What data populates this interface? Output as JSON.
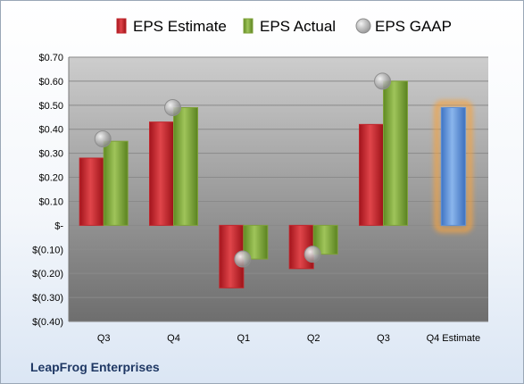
{
  "chart_data": {
    "type": "bar",
    "categories": [
      "Q3",
      "Q4",
      "Q1",
      "Q2",
      "Q3",
      "Q4 Estimate"
    ],
    "series": [
      {
        "name": "EPS Estimate",
        "values": [
          0.28,
          0.43,
          -0.26,
          -0.18,
          0.42,
          null
        ]
      },
      {
        "name": "EPS Actual",
        "values": [
          0.35,
          0.49,
          -0.14,
          -0.12,
          0.6,
          null
        ]
      },
      {
        "name": "EPS GAAP",
        "values": [
          0.36,
          0.49,
          -0.14,
          -0.12,
          0.6,
          null
        ]
      }
    ],
    "forecast": {
      "category": "Q4 Estimate",
      "value": 0.49
    },
    "ylim": [
      -0.4,
      0.7
    ],
    "yticks": [
      -0.4,
      -0.3,
      -0.2,
      -0.1,
      0,
      0.1,
      0.2,
      0.3,
      0.4,
      0.5,
      0.6,
      0.7
    ],
    "ytick_labels": [
      "$(0.40)",
      "$(0.30)",
      "$(0.20)",
      "$(0.10)",
      "$-",
      "$0.10",
      "$0.20",
      "$0.30",
      "$0.40",
      "$0.50",
      "$0.60",
      "$0.70"
    ],
    "legend_position": "top",
    "grid": true,
    "colors": {
      "estimate": "#c0262c",
      "actual": "#7fa13a",
      "gaap": "#b5b5b5",
      "forecast": "#5b8fd6",
      "forecast_glow": "#f5a340"
    }
  },
  "footer": {
    "company": "LeapFrog Enterprises"
  }
}
